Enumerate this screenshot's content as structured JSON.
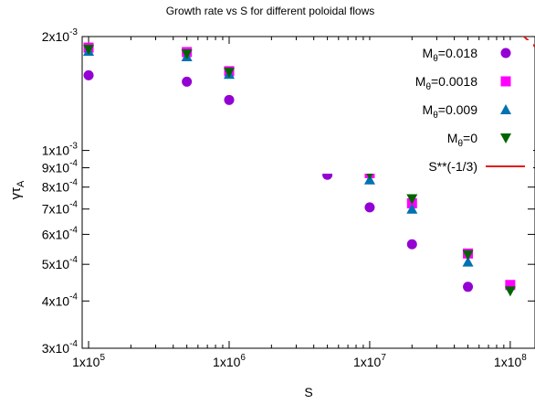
{
  "chart_data": {
    "type": "scatter",
    "title": "Growth rate vs S for different poloidal flows",
    "xlabel": "S",
    "ylabel": {
      "main": "γτ",
      "sub": "A"
    },
    "x_scale": "log",
    "y_scale": "log",
    "xlim": [
      90000,
      150000000
    ],
    "ylim": [
      0.0003,
      0.002
    ],
    "grid": false,
    "legend_position": "top-right",
    "x_ticks": [
      {
        "value": 100000,
        "base": "1x10",
        "exp": "5"
      },
      {
        "value": 1000000,
        "base": "1x10",
        "exp": "6"
      },
      {
        "value": 10000000,
        "base": "1x10",
        "exp": "7"
      },
      {
        "value": 100000000,
        "base": "1x10",
        "exp": "8"
      }
    ],
    "y_ticks": [
      {
        "value": 0.0003,
        "base": "3x10",
        "exp": "-4"
      },
      {
        "value": 0.0004,
        "base": "4x10",
        "exp": "-4"
      },
      {
        "value": 0.0005,
        "base": "5x10",
        "exp": "-4"
      },
      {
        "value": 0.0006,
        "base": "6x10",
        "exp": "-4"
      },
      {
        "value": 0.0007,
        "base": "7x10",
        "exp": "-4"
      },
      {
        "value": 0.0008,
        "base": "8x10",
        "exp": "-4"
      },
      {
        "value": 0.0009,
        "base": "9x10",
        "exp": "-4"
      },
      {
        "value": 0.001,
        "base": "1x10",
        "exp": "-3"
      },
      {
        "value": 0.002,
        "base": "2x10",
        "exp": "-3"
      }
    ],
    "series": [
      {
        "label_main": "M",
        "label_sub": "θ",
        "label_rest": "=0.018",
        "marker": "circle",
        "color": "#9400d3",
        "x": [
          100000,
          500000,
          1000000,
          5000000,
          10000000,
          20000000,
          50000000
        ],
        "y": [
          0.00158,
          0.00152,
          0.00136,
          0.000862,
          0.000707,
          0.000565,
          0.000436
        ]
      },
      {
        "label_main": "M",
        "label_sub": "θ",
        "label_rest": "=0.0018",
        "marker": "square",
        "color": "#ff00ff",
        "x": [
          100000,
          500000,
          1000000,
          5000000,
          10000000,
          20000000,
          50000000,
          100000000
        ],
        "y": [
          0.00187,
          0.00182,
          0.00162,
          0.00107,
          0.000871,
          0.000725,
          0.000534,
          0.000441
        ]
      },
      {
        "label_main": "M",
        "label_sub": "θ",
        "label_rest": "=0.009",
        "marker": "triangle-up",
        "color": "#0072b2",
        "x": [
          100000,
          500000,
          1000000,
          5000000,
          10000000,
          20000000,
          50000000
        ],
        "y": [
          0.00183,
          0.00177,
          0.00159,
          0.00103,
          0.000836,
          0.0007,
          0.000507
        ]
      },
      {
        "label_main": "M",
        "label_sub": "θ",
        "label_rest": "=0",
        "marker": "triangle-down",
        "color": "#006400",
        "x": [
          100000,
          500000,
          1000000,
          5000000,
          10000000,
          20000000,
          50000000,
          100000000
        ],
        "y": [
          0.00185,
          0.0018,
          0.00161,
          0.00106,
          0.000865,
          0.000745,
          0.00053,
          0.000425
        ]
      },
      {
        "label_main": "S**(-1/3)",
        "label_sub": "",
        "label_rest": "",
        "marker": "line",
        "color": "#e41a1c",
        "function": "S^(-1/3)",
        "coefficient": 1,
        "exponent": -0.3333333
      }
    ]
  }
}
